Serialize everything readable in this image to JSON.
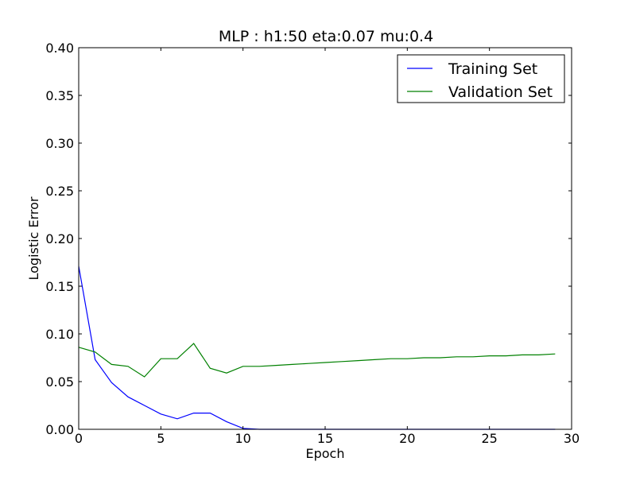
{
  "chart_data": {
    "type": "line",
    "title": "MLP : h1:50 eta:0.07 mu:0.4",
    "xlabel": "Epoch",
    "ylabel": "Logistic Error",
    "xlim": [
      0,
      30
    ],
    "ylim": [
      0,
      0.4
    ],
    "xticks": [
      0,
      5,
      10,
      15,
      20,
      25,
      30
    ],
    "yticks": [
      0.0,
      0.05,
      0.1,
      0.15,
      0.2,
      0.25,
      0.3,
      0.35,
      0.4
    ],
    "xtick_labels": [
      "0",
      "5",
      "10",
      "15",
      "20",
      "25",
      "30"
    ],
    "ytick_labels": [
      "0.00",
      "0.05",
      "0.10",
      "0.15",
      "0.20",
      "0.25",
      "0.30",
      "0.35",
      "0.40"
    ],
    "grid": false,
    "legend_position": "top-right",
    "series": [
      {
        "name": "Training Set",
        "color": "#0000ff",
        "x": [
          0,
          1,
          2,
          3,
          4,
          5,
          6,
          7,
          8,
          9,
          10,
          11,
          12,
          13,
          14,
          15,
          16,
          17,
          18,
          19,
          20,
          21,
          22,
          23,
          24,
          25,
          26,
          27,
          28,
          29
        ],
        "y": [
          0.171,
          0.073,
          0.049,
          0.034,
          0.025,
          0.016,
          0.011,
          0.017,
          0.017,
          0.008,
          0.001,
          0.0,
          0.0,
          0.0,
          0.0,
          0.0,
          0.0,
          0.0,
          0.0,
          0.0,
          0.0,
          0.0,
          0.0,
          0.0,
          0.0,
          0.0,
          0.0,
          0.0,
          0.0,
          0.0
        ]
      },
      {
        "name": "Validation Set",
        "color": "#008000",
        "x": [
          0,
          1,
          2,
          3,
          4,
          5,
          6,
          7,
          8,
          9,
          10,
          11,
          12,
          13,
          14,
          15,
          16,
          17,
          18,
          19,
          20,
          21,
          22,
          23,
          24,
          25,
          26,
          27,
          28,
          29
        ],
        "y": [
          0.086,
          0.081,
          0.068,
          0.066,
          0.055,
          0.074,
          0.074,
          0.09,
          0.064,
          0.059,
          0.066,
          0.066,
          0.067,
          0.068,
          0.069,
          0.07,
          0.071,
          0.072,
          0.073,
          0.074,
          0.074,
          0.075,
          0.075,
          0.076,
          0.076,
          0.077,
          0.077,
          0.078,
          0.078,
          0.079
        ]
      }
    ]
  }
}
